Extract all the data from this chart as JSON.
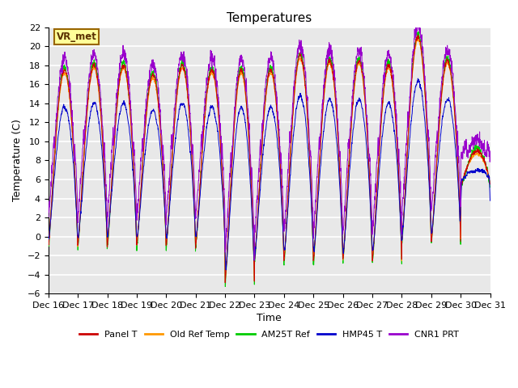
{
  "title": "Temperatures",
  "xlabel": "Time",
  "ylabel": "Temperature (C)",
  "ylim": [
    -6,
    22
  ],
  "yticks": [
    -6,
    -4,
    -2,
    0,
    2,
    4,
    6,
    8,
    10,
    12,
    14,
    16,
    18,
    20,
    22
  ],
  "x_tick_labels": [
    "Dec 16",
    "Dec 17",
    "Dec 18",
    "Dec 19",
    "Dec 20",
    "Dec 21",
    "Dec 22",
    "Dec 23",
    "Dec 24",
    "Dec 25",
    "Dec 26",
    "Dec 27",
    "Dec 28",
    "Dec 29",
    "Dec 30",
    "Dec 31"
  ],
  "series_colors": {
    "Panel T": "#cc0000",
    "Old Ref Temp": "#ff9900",
    "AM25T Ref": "#00cc00",
    "HMP45 T": "#0000cc",
    "CNR1 PRT": "#9900cc"
  },
  "legend_entries": [
    "Panel T",
    "Old Ref Temp",
    "AM25T Ref",
    "HMP45 T",
    "CNR1 PRT"
  ],
  "annotation_text": "VR_met",
  "annotation_box_color": "#ffff99",
  "annotation_box_edge": "#996600",
  "plot_bg_color": "#e8e8e8",
  "fig_bg_color": "#ffffff",
  "grid_color": "#ffffff",
  "n_days": 15,
  "points_per_day": 144,
  "figsize": [
    6.4,
    4.8
  ],
  "dpi": 100
}
